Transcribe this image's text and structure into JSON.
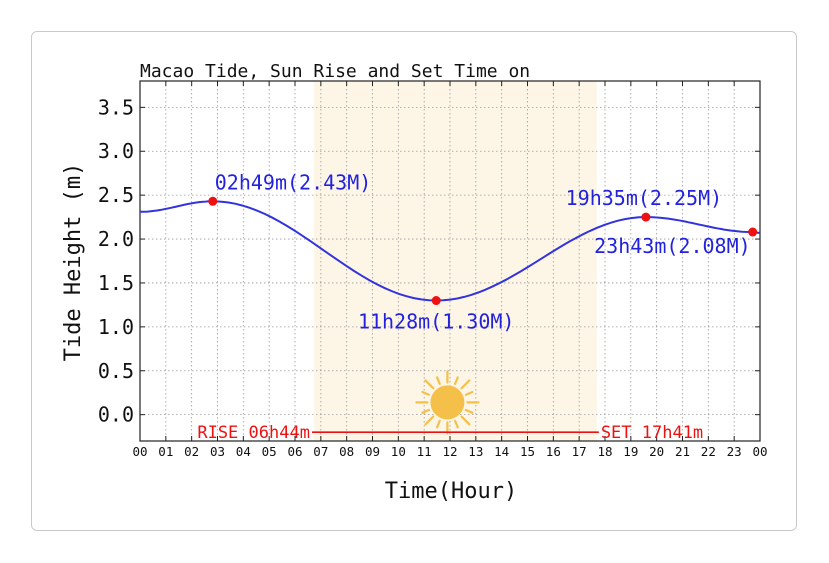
{
  "chart_data": {
    "type": "line",
    "title": "Macao Tide, Sun Rise and Set Time on",
    "xlabel": "Time(Hour)",
    "ylabel": "Tide Height (m)",
    "xlim": [
      0,
      24
    ],
    "ylim": [
      -0.3,
      3.8
    ],
    "grid": true,
    "x_ticks": [
      "00",
      "01",
      "02",
      "03",
      "04",
      "05",
      "06",
      "07",
      "08",
      "09",
      "10",
      "11",
      "12",
      "13",
      "14",
      "15",
      "16",
      "17",
      "18",
      "19",
      "20",
      "21",
      "22",
      "23",
      "00"
    ],
    "y_ticks": [
      "0.0",
      "0.5",
      "1.0",
      "1.5",
      "2.0",
      "2.5",
      "3.0",
      "3.5"
    ],
    "series": [
      {
        "color": "#3333dd",
        "x": [
          0,
          2.8167,
          11.4667,
          19.5833,
          23.7167,
          24
        ],
        "y": [
          2.31,
          2.43,
          1.3,
          2.25,
          2.08,
          2.07
        ]
      }
    ],
    "extrema": [
      {
        "x": 2.8167,
        "y": 2.43,
        "label": "02h49m(2.43M)"
      },
      {
        "x": 11.4667,
        "y": 1.3,
        "label": "11h28m(1.30M)"
      },
      {
        "x": 19.5833,
        "y": 2.25,
        "label": "19h35m(2.25M)"
      },
      {
        "x": 23.7167,
        "y": 2.08,
        "label": "23h43m(2.08M)"
      }
    ],
    "daylight": {
      "sunrise_hour": 6.7333,
      "sunset_hour": 17.6833,
      "rise_label": "RISE 06h44m",
      "set_label": "SET 17h41m",
      "line_y": -0.2,
      "fill_color": "#fdf6e6",
      "sun_color": "#f5c04a"
    },
    "marker_color": "#ee1111",
    "annotation_color": "#2222dd",
    "sun_text_color": "#ee1111"
  }
}
